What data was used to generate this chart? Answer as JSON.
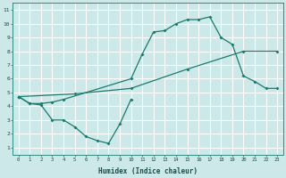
{
  "xlabel": "Humidex (Indice chaleur)",
  "bg_color": "#cce8e8",
  "grid_color": "#ffffff",
  "line_color": "#1a7a6e",
  "xlim": [
    -0.5,
    23.5
  ],
  "ylim": [
    0.5,
    11.5
  ],
  "xticks": [
    0,
    1,
    2,
    3,
    4,
    5,
    6,
    7,
    8,
    9,
    10,
    11,
    12,
    13,
    14,
    15,
    16,
    17,
    18,
    19,
    20,
    21,
    22,
    23
  ],
  "yticks": [
    1,
    2,
    3,
    4,
    5,
    6,
    7,
    8,
    9,
    10,
    11
  ],
  "line1_x": [
    0,
    1,
    2,
    3,
    4,
    10,
    11,
    12,
    13,
    14,
    15,
    16,
    17,
    18,
    19,
    20,
    21,
    22,
    23
  ],
  "line1_y": [
    4.7,
    4.2,
    4.2,
    4.3,
    4.5,
    6.0,
    7.8,
    9.4,
    9.5,
    10.0,
    10.3,
    10.3,
    10.5,
    9.0,
    8.5,
    6.2,
    5.8,
    5.3,
    5.3
  ],
  "line2_x": [
    0,
    5,
    10,
    15,
    20,
    23
  ],
  "line2_y": [
    4.7,
    4.9,
    5.3,
    6.7,
    8.0,
    8.0
  ],
  "line3_x": [
    0,
    1,
    2,
    3,
    4,
    5,
    6,
    7,
    8,
    9,
    10
  ],
  "line3_y": [
    4.7,
    4.2,
    4.1,
    3.0,
    3.0,
    2.5,
    1.8,
    1.5,
    1.3,
    2.7,
    4.5
  ]
}
